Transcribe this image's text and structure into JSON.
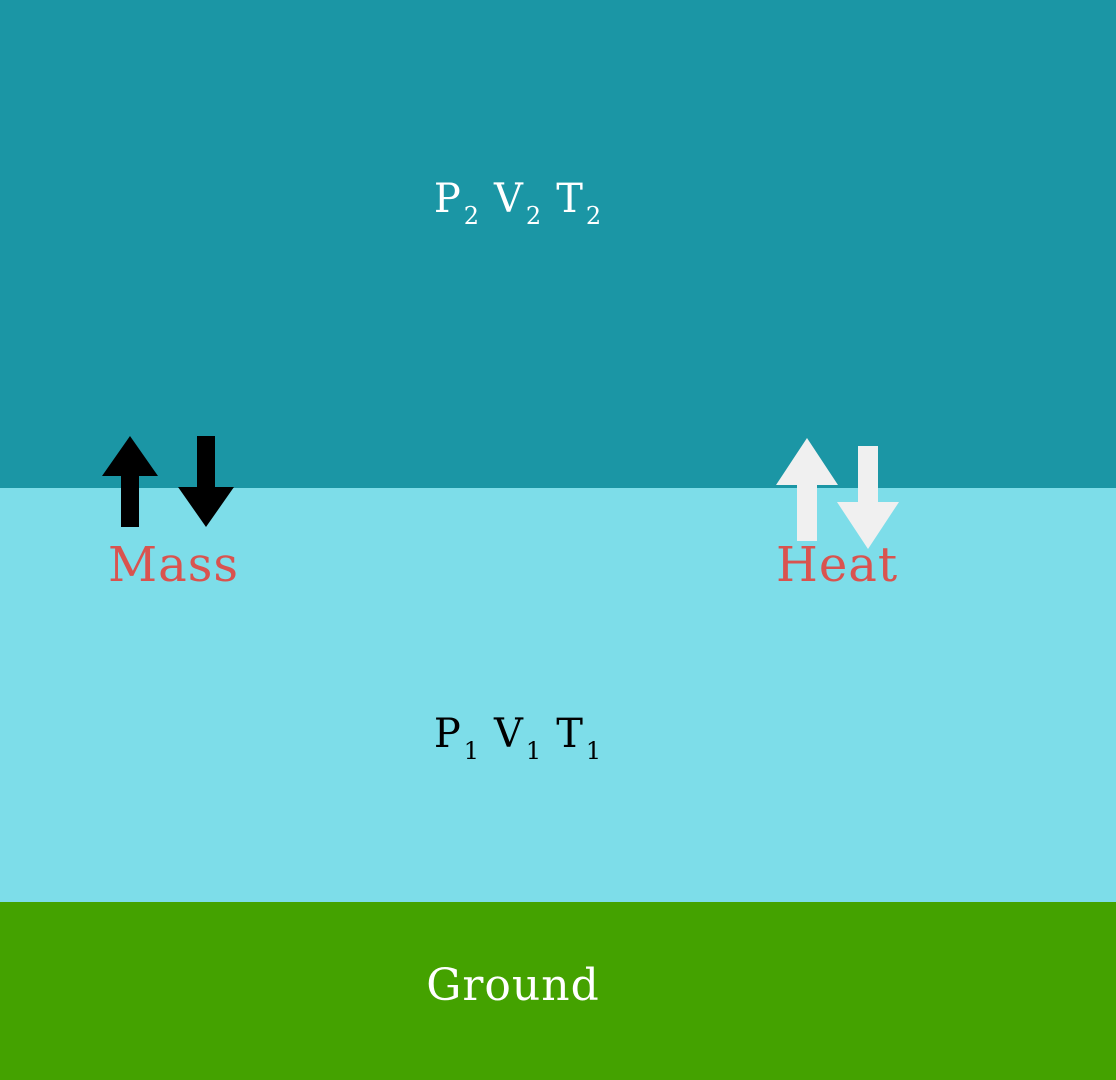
{
  "layers": {
    "upper": {
      "color": "#1b96a5"
    },
    "lower": {
      "color": "#7ddde9"
    },
    "ground": {
      "color": "#44a200",
      "label": "Ground"
    }
  },
  "upper_state": {
    "p": "P",
    "p_sub": "2",
    "v": "V",
    "v_sub": "2",
    "t": "T",
    "t_sub": "2",
    "color": "#ffffff"
  },
  "lower_state": {
    "p": "P",
    "p_sub": "1",
    "v": "V",
    "v_sub": "1",
    "t": "T",
    "t_sub": "1",
    "color": "#000000"
  },
  "mass": {
    "label": "Mass",
    "label_color": "#d9534f",
    "arrow_color": "#000000",
    "arrows": [
      "arrow-up",
      "arrow-down"
    ]
  },
  "heat": {
    "label": "Heat",
    "label_color": "#d9534f",
    "arrow_color": "#f0f0f0",
    "arrows": [
      "arrow-up",
      "arrow-down"
    ]
  },
  "ground_label_color": "#ffffff"
}
